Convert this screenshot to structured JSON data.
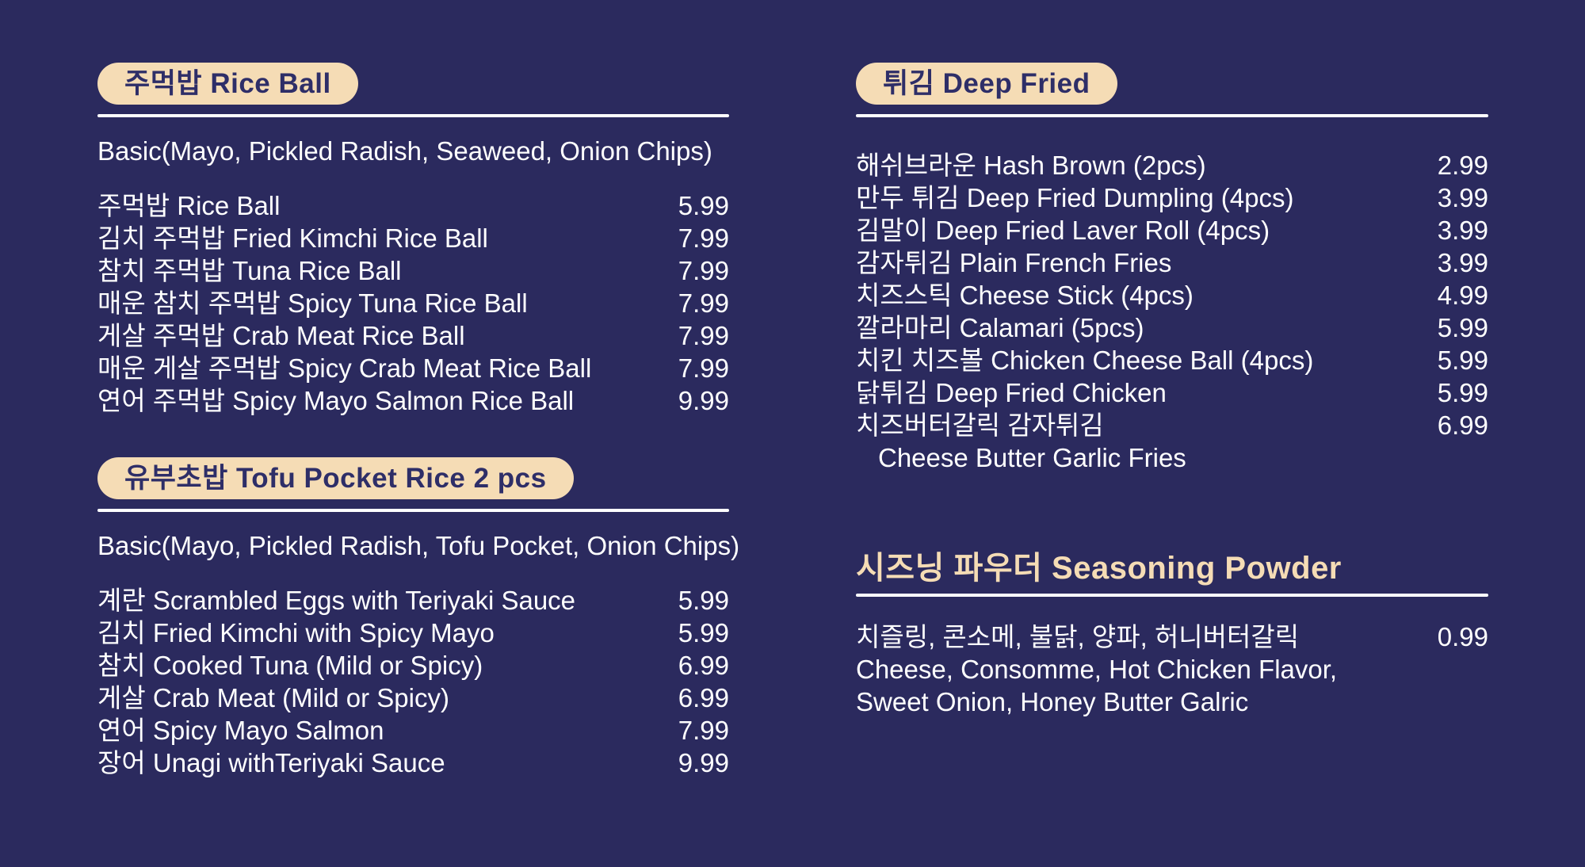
{
  "colors": {
    "background": "#2b2a5e",
    "cream_accent": "#f5dcb5",
    "pill_text_navy": "#2e2e68",
    "body_text_white": "#ffffff"
  },
  "sections": [
    {
      "title": "주먹밥 Rice Ball",
      "header_style": "pill",
      "note": "Basic(Mayo, Pickled Radish, Seaweed, Onion Chips)",
      "items": [
        {
          "name": "주먹밥 Rice Ball",
          "price": "5.99"
        },
        {
          "name": "김치 주먹밥 Fried Kimchi Rice Ball",
          "price": "7.99"
        },
        {
          "name": "참치 주먹밥 Tuna Rice Ball",
          "price": "7.99"
        },
        {
          "name": "매운 참치 주먹밥 Spicy Tuna Rice Ball",
          "price": "7.99"
        },
        {
          "name": "게살 주먹밥 Crab Meat Rice Ball",
          "price": "7.99"
        },
        {
          "name": "매운 게살 주먹밥 Spicy Crab Meat Rice Ball",
          "price": "7.99"
        },
        {
          "name": "연어 주먹밥 Spicy Mayo Salmon Rice Ball",
          "price": "9.99"
        }
      ]
    },
    {
      "title": "유부초밥 Tofu Pocket Rice 2 pcs",
      "header_style": "pill",
      "note": "Basic(Mayo, Pickled Radish, Tofu Pocket, Onion Chips)",
      "items": [
        {
          "name": "계란 Scrambled Eggs with Teriyaki Sauce",
          "price": "5.99"
        },
        {
          "name": "김치 Fried Kimchi with Spicy Mayo",
          "price": "5.99"
        },
        {
          "name": "참치 Cooked Tuna (Mild or Spicy)",
          "price": "6.99"
        },
        {
          "name": "게살 Crab Meat (Mild or Spicy)",
          "price": "6.99"
        },
        {
          "name": "연어 Spicy Mayo Salmon",
          "price": "7.99"
        },
        {
          "name": "장어 Unagi withTeriyaki Sauce",
          "price": "9.99"
        }
      ]
    },
    {
      "title": "튀김 Deep Fried",
      "header_style": "pill",
      "note": "",
      "items": [
        {
          "name": "해쉬브라운 Hash Brown (2pcs)",
          "price": "2.99"
        },
        {
          "name": "만두 튀김 Deep Fried Dumpling (4pcs)",
          "price": "3.99"
        },
        {
          "name": "김말이 Deep Fried Laver Roll (4pcs)",
          "price": "3.99"
        },
        {
          "name": "감자튀김 Plain French Fries",
          "price": "3.99"
        },
        {
          "name": "치즈스틱 Cheese Stick (4pcs)",
          "price": "4.99"
        },
        {
          "name": "깔라마리 Calamari (5pcs)",
          "price": "5.99"
        },
        {
          "name": "치킨 치즈볼 Chicken Cheese Ball (4pcs)",
          "price": "5.99"
        },
        {
          "name": "닭튀김 Deep Fried Chicken",
          "price": "5.99"
        },
        {
          "name": "치즈버터갈릭 감자튀김",
          "price": "6.99",
          "subtext": "Cheese Butter Garlic Fries"
        }
      ]
    },
    {
      "title": "시즈닝 파우더 Seasoning Powder",
      "header_style": "plain",
      "note": "",
      "items": [
        {
          "name": "치즐링, 콘소메, 불닭, 양파, 허니버터갈릭",
          "price": "0.99",
          "subtext": "Cheese, Consomme, Hot Chicken Flavor,\nSweet Onion, Honey Butter Galric"
        }
      ]
    }
  ]
}
